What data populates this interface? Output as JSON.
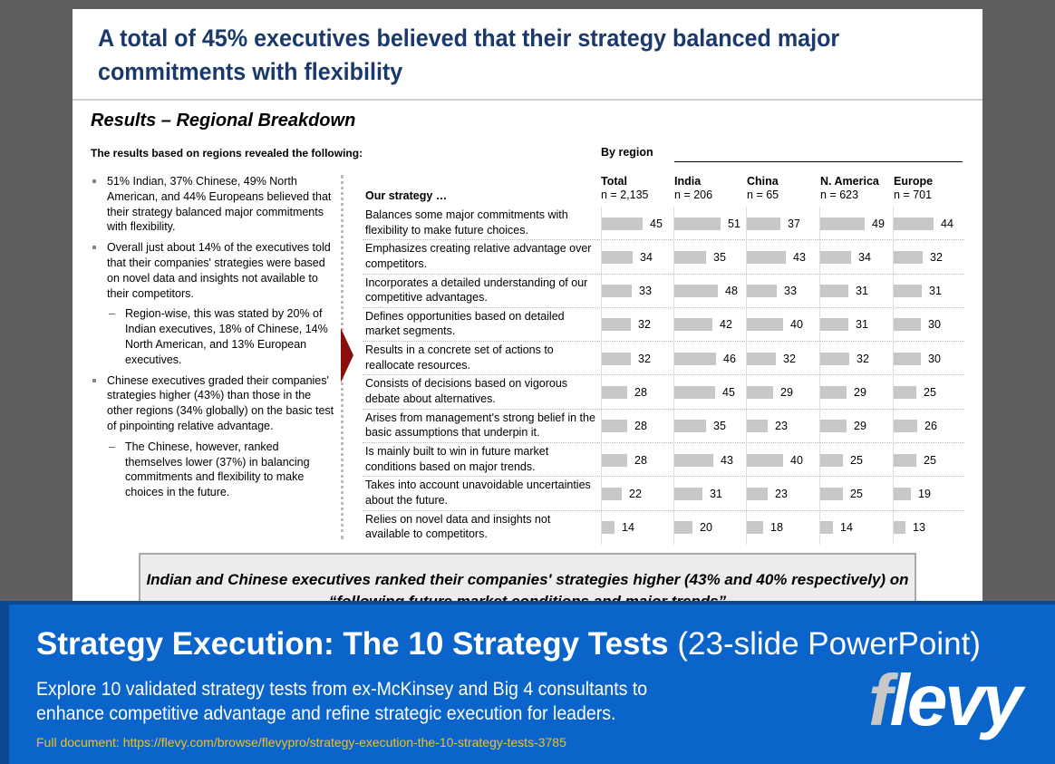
{
  "slide": {
    "title": "A total of 45% executives believed that their strategy balanced major commitments with flexibility",
    "subtitle": "Results – Regional Breakdown",
    "intro": "The results based on regions revealed the following:",
    "bullets": [
      {
        "level": 1,
        "text": "51% Indian, 37% Chinese, 49% North American, and 44% Europeans believed that their strategy balanced major commitments with flexibility."
      },
      {
        "level": 1,
        "text": "Overall just about 14% of the executives told that their companies' strategies were based on novel data and insights not available to their competitors."
      },
      {
        "level": 2,
        "text": "Region-wise, this was stated by 20% of Indian executives, 18% of Chinese, 14% North American, and 13% European executives."
      },
      {
        "level": 1,
        "text": "Chinese executives graded their companies' strategies higher (43%) than those in the other regions (34% globally) on the basic test of pinpointing relative advantage."
      },
      {
        "level": 2,
        "text": "The Chinese, however, ranked themselves lower (37%) in balancing commitments and flexibility to make choices in the future."
      }
    ],
    "callout": "Indian and Chinese executives ranked their companies' strategies higher (43% and 40% respectively) on “following future market conditions and major trends”"
  },
  "chart_data": {
    "type": "bar",
    "group_label": "By region",
    "row_header": "Our strategy …",
    "columns": [
      {
        "name": "Total",
        "n": "n = 2,135"
      },
      {
        "name": "India",
        "n": "n = 206"
      },
      {
        "name": "China",
        "n": "n = 65"
      },
      {
        "name": "N. America",
        "n": "n = 623"
      },
      {
        "name": "Europe",
        "n": "n = 701"
      }
    ],
    "rows": [
      {
        "label": "Balances some major commitments with flexibility to make future choices.",
        "values": [
          45,
          51,
          37,
          49,
          44
        ]
      },
      {
        "label": "Emphasizes creating relative advantage over competitors.",
        "values": [
          34,
          35,
          43,
          34,
          32
        ]
      },
      {
        "label": "Incorporates a detailed understanding of  our competitive advantages.",
        "values": [
          33,
          48,
          33,
          31,
          31
        ]
      },
      {
        "label": "Defines opportunities based on detailed market segments.",
        "values": [
          32,
          42,
          40,
          31,
          30
        ]
      },
      {
        "label": "Results in a concrete set of actions to reallocate resources.",
        "values": [
          32,
          46,
          32,
          32,
          30
        ]
      },
      {
        "label": "Consists of decisions based on vigorous debate about alternatives.",
        "values": [
          28,
          45,
          29,
          29,
          25
        ]
      },
      {
        "label": "Arises from management's strong belief in the basic assumptions that underpin it.",
        "values": [
          28,
          35,
          23,
          29,
          26
        ]
      },
      {
        "label": "Is mainly built to win in future market conditions based on major trends.",
        "values": [
          28,
          43,
          40,
          25,
          25
        ]
      },
      {
        "label": "Takes into account unavoidable uncertainties about the future.",
        "values": [
          22,
          31,
          23,
          25,
          19
        ]
      },
      {
        "label": "Relies on novel data and insights not available to competitors.",
        "values": [
          14,
          20,
          18,
          14,
          13
        ]
      }
    ],
    "bar_color": "#c8c8c8"
  },
  "banner": {
    "title_bold": "Strategy Execution: The 10 Strategy Tests",
    "title_light": "(23-slide PowerPoint)",
    "description": "Explore 10 validated strategy tests from ex-McKinsey and Big 4 consultants to enhance competitive advantage and refine strategic execution for leaders.",
    "link": "Full document: https://flevy.com/browse/flevypro/strategy-execution-the-10-strategy-tests-3785",
    "logo": "flevy",
    "accent": "#0a64c9",
    "link_color": "#f2c21b"
  }
}
